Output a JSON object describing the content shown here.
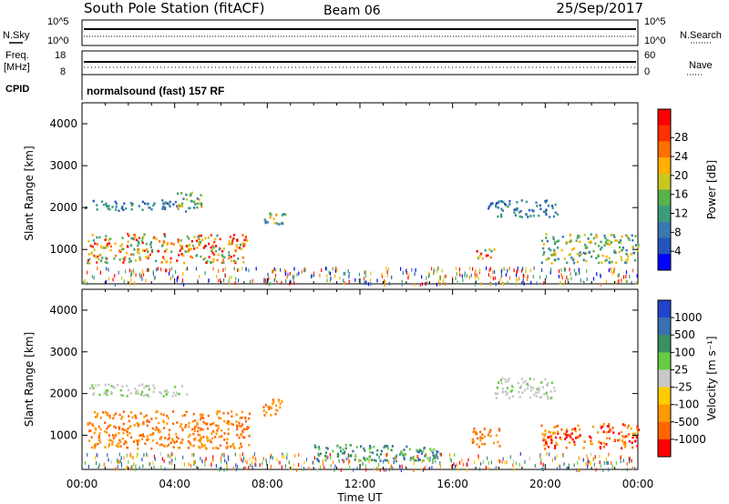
{
  "header": {
    "station": "South Pole Station (fitACF)",
    "beam": "Beam 06",
    "date": "25/Sep/2017"
  },
  "strips": {
    "nsky_label": "N.Sky",
    "nsky_ticks": [
      "10^5",
      "10^0"
    ],
    "nsearch_label": "N.Search",
    "nsearch_ticks": [
      "10^5",
      "10^0"
    ],
    "freq_label": "Freq.",
    "freq_unit": "[MHz]",
    "freq_ticks": [
      "18",
      "8"
    ],
    "nave_label": "Nave",
    "nave_ticks": [
      "60",
      "0"
    ],
    "cpid_label": "CPID",
    "cpid_value": "normalsound (fast) 157 RF"
  },
  "chart_data": [
    {
      "type": "heatmap",
      "name": "power",
      "ylabel": "Slant Range [km]",
      "xlabel": "Time UT",
      "xlim": [
        0,
        24
      ],
      "xticks": [
        "00:00",
        "04:00",
        "08:00",
        "12:00",
        "16:00",
        "20:00",
        "00:00"
      ],
      "ylim": [
        180,
        4500
      ],
      "yticks": [
        1000,
        2000,
        3000,
        4000
      ],
      "colorbar": {
        "label": "Power [dB]",
        "ticks": [
          "4",
          "8",
          "12",
          "16",
          "20",
          "24",
          "28"
        ],
        "colors": [
          "#0000ff",
          "#2255bb",
          "#3b78b0",
          "#3a9d7a",
          "#5ab04d",
          "#c8c820",
          "#ffb000",
          "#ff7000",
          "#ff3000",
          "#ff0000"
        ]
      },
      "regions": [
        {
          "t0": 0.1,
          "t1": 4.3,
          "r0": 1950,
          "r1": 2200,
          "level": "low"
        },
        {
          "t0": 0.2,
          "t1": 7.1,
          "r0": 700,
          "r1": 1400,
          "level": "high"
        },
        {
          "t0": 4.0,
          "t1": 5.2,
          "r0": 1900,
          "r1": 2400,
          "level": "mid"
        },
        {
          "t0": 7.8,
          "t1": 8.8,
          "r0": 1500,
          "r1": 1900,
          "level": "mid"
        },
        {
          "t0": 17.0,
          "t1": 17.8,
          "r0": 800,
          "r1": 1100,
          "level": "high"
        },
        {
          "t0": 17.5,
          "t1": 20.5,
          "r0": 1800,
          "r1": 2200,
          "level": "low"
        },
        {
          "t0": 19.8,
          "t1": 24.0,
          "r0": 700,
          "r1": 1400,
          "level": "mid"
        },
        {
          "t0": 0.0,
          "t1": 24.0,
          "r0": 200,
          "r1": 600,
          "level": "scatter"
        }
      ]
    },
    {
      "type": "heatmap",
      "name": "velocity",
      "ylabel": "Slant Range [km]",
      "xlabel": "Time UT",
      "xlim": [
        0,
        24
      ],
      "xticks": [
        "00:00",
        "04:00",
        "08:00",
        "12:00",
        "16:00",
        "20:00",
        "00:00"
      ],
      "ylim": [
        180,
        4500
      ],
      "yticks": [
        1000,
        2000,
        3000,
        4000
      ],
      "colorbar": {
        "label": "Velocity [m s⁻¹]",
        "ticks": [
          "1000",
          "500",
          "100",
          "25",
          "-25",
          "-100",
          "-500",
          "-1000"
        ],
        "colors": [
          "#2244cc",
          "#3a70b0",
          "#3a9060",
          "#66cc44",
          "#c8c8c8",
          "#ffcc00",
          "#ff9900",
          "#ff6600",
          "#ff0000"
        ]
      },
      "regions": [
        {
          "t0": 0.3,
          "t1": 4.5,
          "r0": 1950,
          "r1": 2250,
          "level": "gray"
        },
        {
          "t0": 0.2,
          "t1": 7.2,
          "r0": 700,
          "r1": 1600,
          "level": "neg"
        },
        {
          "t0": 7.8,
          "t1": 8.8,
          "r0": 1500,
          "r1": 1900,
          "level": "neg"
        },
        {
          "t0": 10.0,
          "t1": 15.5,
          "r0": 400,
          "r1": 800,
          "level": "pos"
        },
        {
          "t0": 16.8,
          "t1": 18.0,
          "r0": 700,
          "r1": 1200,
          "level": "neg"
        },
        {
          "t0": 17.8,
          "t1": 20.5,
          "r0": 1900,
          "r1": 2400,
          "level": "gray"
        },
        {
          "t0": 19.8,
          "t1": 24.0,
          "r0": 700,
          "r1": 1300,
          "level": "neg2"
        },
        {
          "t0": 0.0,
          "t1": 24.0,
          "r0": 200,
          "r1": 600,
          "level": "scatter"
        }
      ]
    }
  ]
}
